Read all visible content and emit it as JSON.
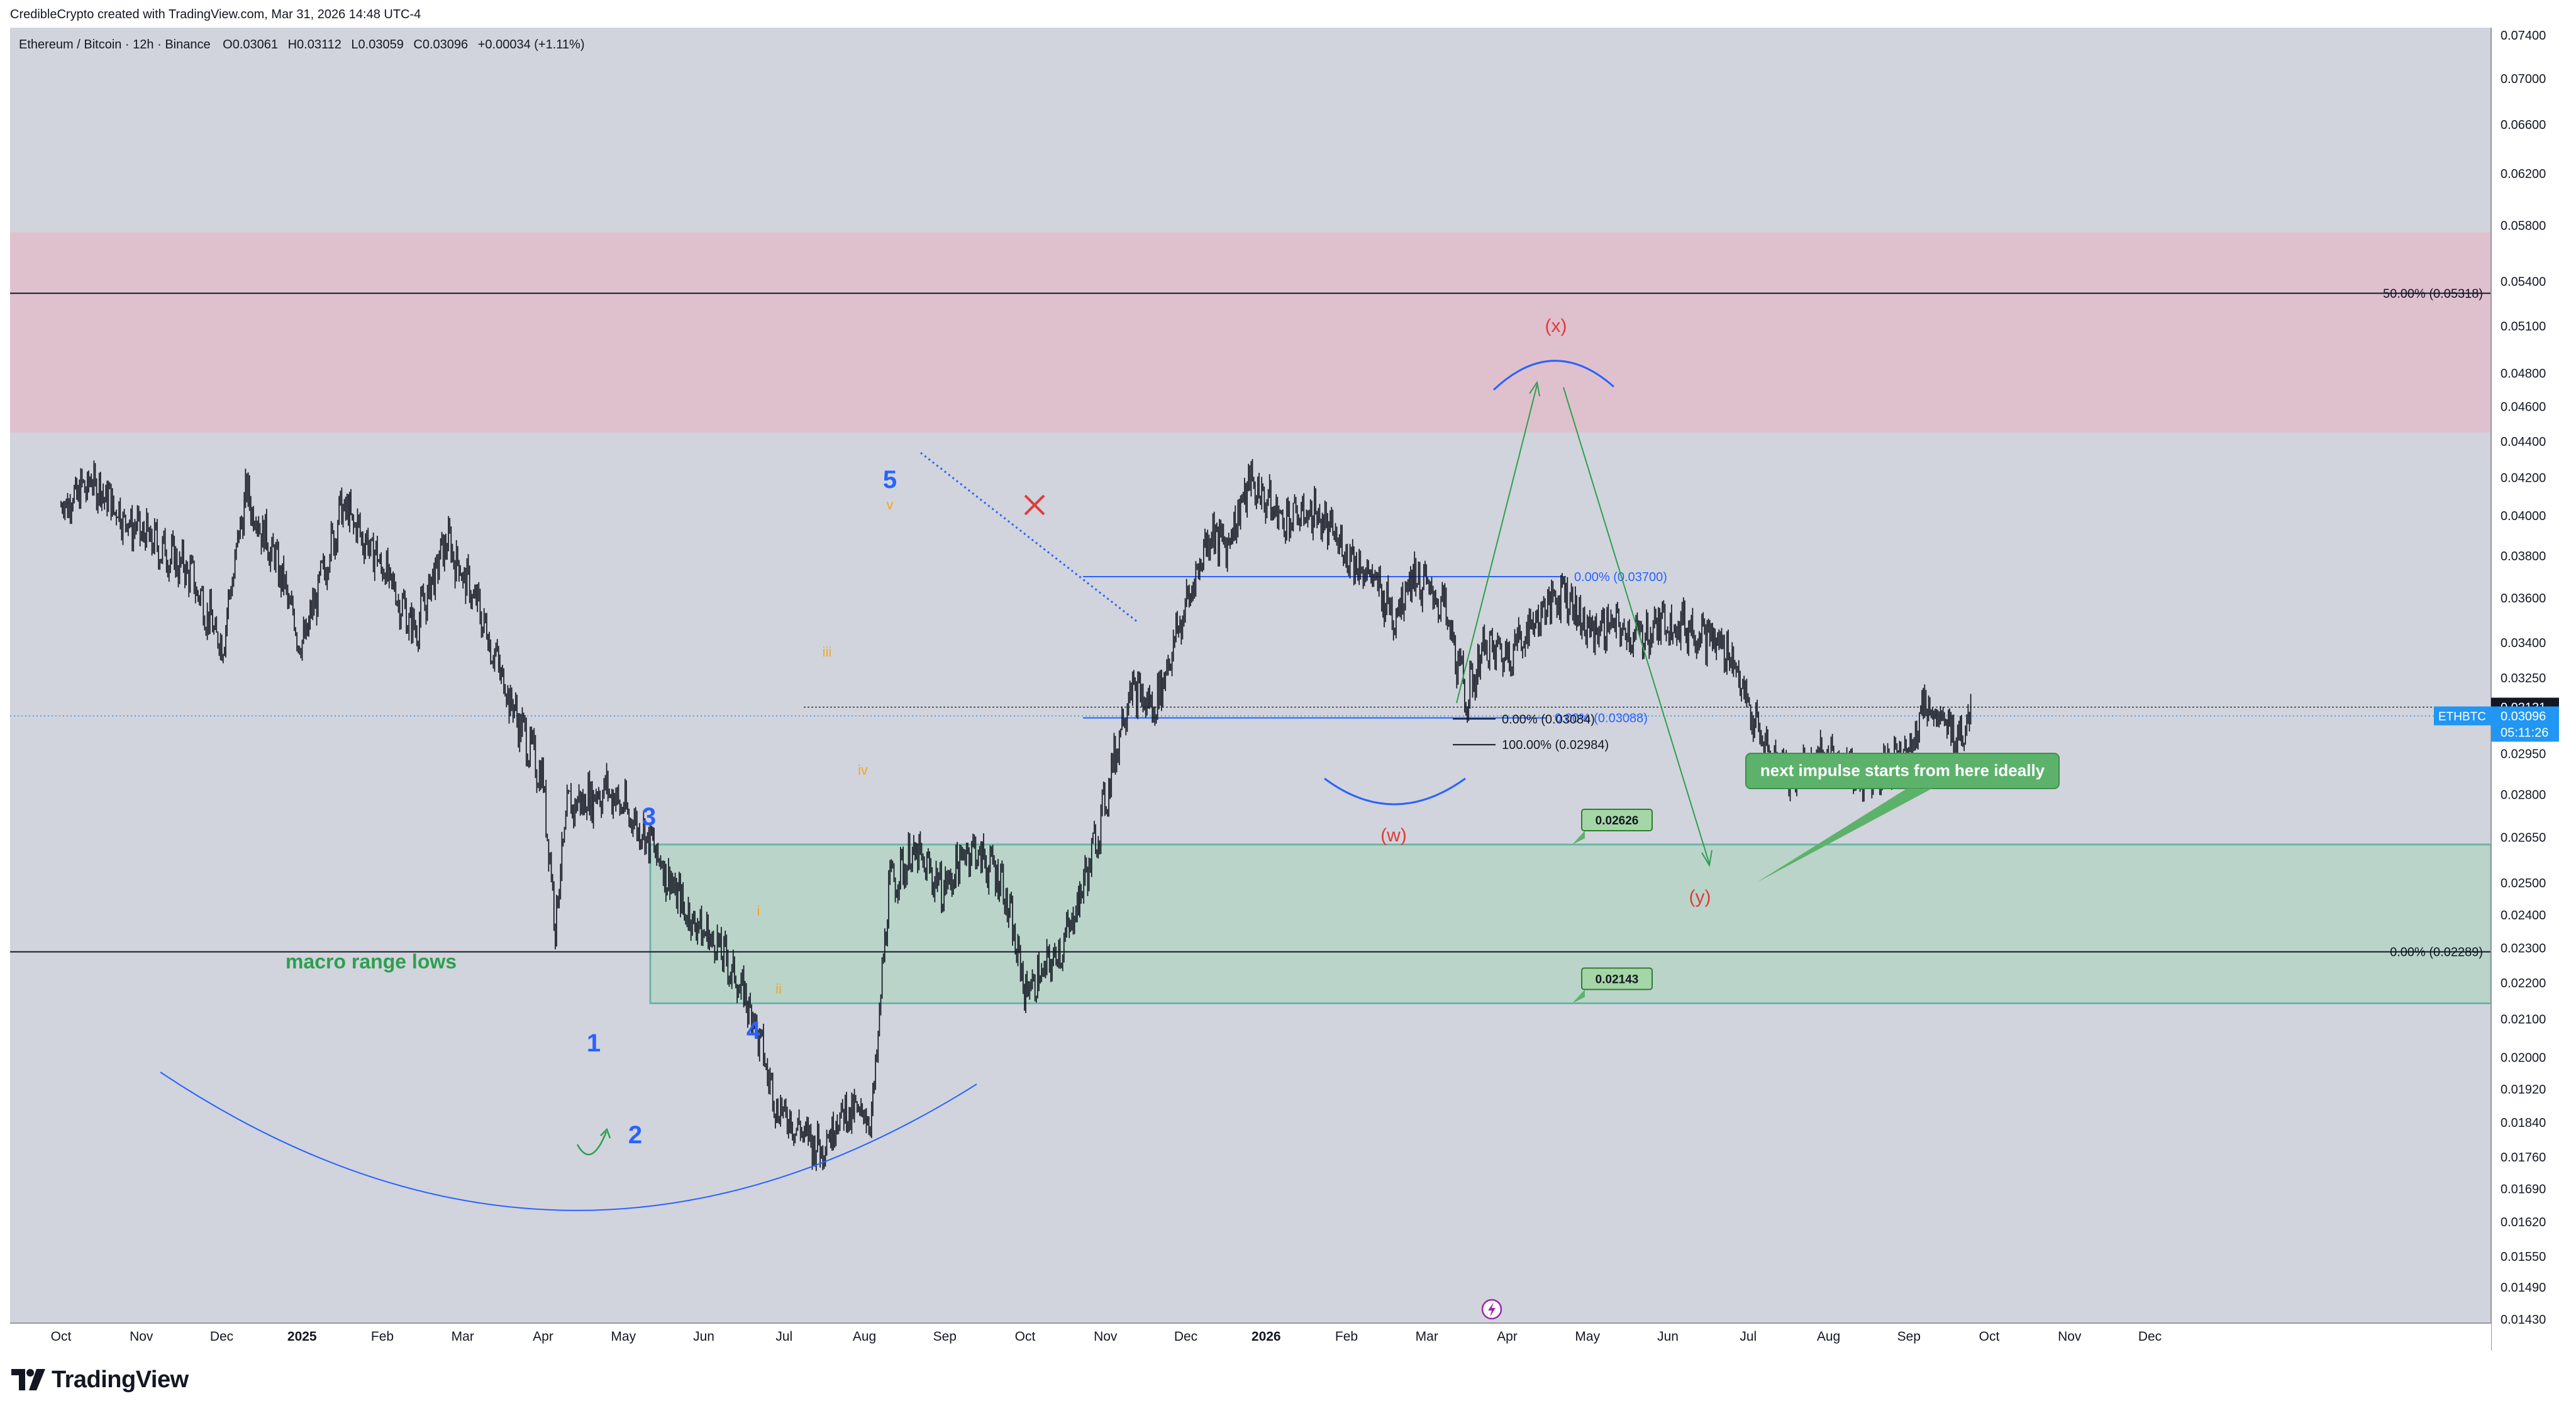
{
  "credit": "CredibleCrypto created with TradingView.com, Mar 31, 2026 14:48 UTC-4",
  "brand": "TradingView",
  "legend": {
    "title": "Ethereum / Bitcoin · 12h · Binance",
    "o_label": "O",
    "o_val": "0.03061",
    "h_label": "H",
    "h_val": "0.03112",
    "l_label": "L",
    "l_val": "0.03059",
    "c_label": "C",
    "c_val": "0.03096",
    "change": "+0.00034 (+1.11%)"
  },
  "colors": {
    "background": "#d1d4dc",
    "zone_red": "#e8b4c4",
    "zone_green": "#a8d5bc",
    "zone_green_border": "#1f9a78",
    "candle": "#131722",
    "blue_annot": "#2962ff",
    "orange_annot": "#f5a623",
    "red_annot": "#e03b3b",
    "green_annot": "#2e9e4f",
    "callout_green": "#5db26b",
    "price_tag_blue": "#2196f3"
  },
  "chart_data": {
    "type": "candlestick",
    "symbol": "ETHBTC",
    "interval": "12h",
    "price_axis": {
      "ticks": [
        "0.07400",
        "0.07000",
        "0.06600",
        "0.06200",
        "0.05800",
        "0.05400",
        "0.05100",
        "0.04800",
        "0.04600",
        "0.04400",
        "0.04200",
        "0.04000",
        "0.03800",
        "0.03600",
        "0.03400",
        "0.03250",
        "0.02950",
        "0.02800",
        "0.02650",
        "0.02500",
        "0.02400",
        "0.02300",
        "0.02200",
        "0.02100",
        "0.02000",
        "0.01920",
        "0.01840",
        "0.01760",
        "0.01690",
        "0.01620",
        "0.01550",
        "0.01490",
        "0.01430"
      ],
      "scale": "log"
    },
    "time_axis": {
      "ticks": [
        {
          "label": "Oct",
          "bold": false
        },
        {
          "label": "Nov",
          "bold": false
        },
        {
          "label": "Dec",
          "bold": false
        },
        {
          "label": "2025",
          "bold": true
        },
        {
          "label": "Feb",
          "bold": false
        },
        {
          "label": "Mar",
          "bold": false
        },
        {
          "label": "Apr",
          "bold": false
        },
        {
          "label": "May",
          "bold": false
        },
        {
          "label": "Jun",
          "bold": false
        },
        {
          "label": "Jul",
          "bold": false
        },
        {
          "label": "Aug",
          "bold": false
        },
        {
          "label": "Sep",
          "bold": false
        },
        {
          "label": "Oct",
          "bold": false
        },
        {
          "label": "Nov",
          "bold": false
        },
        {
          "label": "Dec",
          "bold": false
        },
        {
          "label": "2026",
          "bold": true
        },
        {
          "label": "Feb",
          "bold": false
        },
        {
          "label": "Mar",
          "bold": false
        },
        {
          "label": "Apr",
          "bold": false
        },
        {
          "label": "May",
          "bold": false
        },
        {
          "label": "Jun",
          "bold": false
        },
        {
          "label": "Jul",
          "bold": false
        },
        {
          "label": "Aug",
          "bold": false
        },
        {
          "label": "Sep",
          "bold": false
        },
        {
          "label": "Oct",
          "bold": false
        },
        {
          "label": "Nov",
          "bold": false
        },
        {
          "label": "Dec",
          "bold": false
        }
      ]
    },
    "price_path": [
      {
        "m": 0,
        "v": 0.0405
      },
      {
        "m": 0.4,
        "v": 0.0418
      },
      {
        "m": 0.8,
        "v": 0.0398
      },
      {
        "m": 1.2,
        "v": 0.0385
      },
      {
        "m": 1.6,
        "v": 0.0372
      },
      {
        "m": 2.0,
        "v": 0.0338
      },
      {
        "m": 2.3,
        "v": 0.0412
      },
      {
        "m": 2.7,
        "v": 0.0375
      },
      {
        "m": 3.0,
        "v": 0.0338
      },
      {
        "m": 3.5,
        "v": 0.0405
      },
      {
        "m": 4.0,
        "v": 0.0375
      },
      {
        "m": 4.4,
        "v": 0.0345
      },
      {
        "m": 4.8,
        "v": 0.0388
      },
      {
        "m": 5.2,
        "v": 0.0355
      },
      {
        "m": 5.6,
        "v": 0.0315
      },
      {
        "m": 6.0,
        "v": 0.0285
      },
      {
        "m": 6.15,
        "v": 0.0238
      },
      {
        "m": 6.3,
        "v": 0.0275
      },
      {
        "m": 6.8,
        "v": 0.0282
      },
      {
        "m": 7.3,
        "v": 0.0265
      },
      {
        "m": 7.8,
        "v": 0.024
      },
      {
        "m": 8.2,
        "v": 0.023
      },
      {
        "m": 8.6,
        "v": 0.0212
      },
      {
        "m": 8.9,
        "v": 0.0188
      },
      {
        "m": 9.2,
        "v": 0.0182
      },
      {
        "m": 9.45,
        "v": 0.0178
      },
      {
        "m": 9.7,
        "v": 0.0186
      },
      {
        "m": 10.1,
        "v": 0.0186
      },
      {
        "m": 10.3,
        "v": 0.0248
      },
      {
        "m": 10.6,
        "v": 0.026
      },
      {
        "m": 11.0,
        "v": 0.0248
      },
      {
        "m": 11.3,
        "v": 0.0262
      },
      {
        "m": 11.7,
        "v": 0.0252
      },
      {
        "m": 12.0,
        "v": 0.0218
      },
      {
        "m": 12.2,
        "v": 0.0222
      },
      {
        "m": 12.5,
        "v": 0.0232
      },
      {
        "m": 12.8,
        "v": 0.0256
      },
      {
        "m": 13.0,
        "v": 0.0278
      },
      {
        "m": 13.3,
        "v": 0.0322
      },
      {
        "m": 13.6,
        "v": 0.0312
      },
      {
        "m": 13.9,
        "v": 0.0345
      },
      {
        "m": 14.3,
        "v": 0.0392
      },
      {
        "m": 14.5,
        "v": 0.0385
      },
      {
        "m": 14.8,
        "v": 0.0418
      },
      {
        "m": 15.2,
        "v": 0.0398
      },
      {
        "m": 15.6,
        "v": 0.0402
      },
      {
        "m": 16.0,
        "v": 0.0382
      },
      {
        "m": 16.3,
        "v": 0.037
      },
      {
        "m": 16.6,
        "v": 0.0352
      },
      {
        "m": 16.8,
        "v": 0.0372
      },
      {
        "m": 17.2,
        "v": 0.0357
      },
      {
        "m": 17.5,
        "v": 0.0316
      },
      {
        "m": 17.7,
        "v": 0.0338
      },
      {
        "m": 18.0,
        "v": 0.0335
      },
      {
        "m": 18.4,
        "v": 0.0352
      },
      {
        "m": 18.7,
        "v": 0.0365
      },
      {
        "m": 19.0,
        "v": 0.0345
      },
      {
        "m": 19.3,
        "v": 0.0348
      },
      {
        "m": 19.6,
        "v": 0.0342
      },
      {
        "m": 20.0,
        "v": 0.035
      },
      {
        "m": 20.4,
        "v": 0.0345
      },
      {
        "m": 20.8,
        "v": 0.0335
      },
      {
        "m": 21.0,
        "v": 0.0312
      },
      {
        "m": 21.3,
        "v": 0.0292
      },
      {
        "m": 21.6,
        "v": 0.0288
      },
      {
        "m": 22.0,
        "v": 0.0294
      },
      {
        "m": 22.4,
        "v": 0.0287
      },
      {
        "m": 22.8,
        "v": 0.0292
      },
      {
        "m": 23.0,
        "v": 0.0296
      },
      {
        "m": 23.2,
        "v": 0.0316
      },
      {
        "m": 23.4,
        "v": 0.0306
      },
      {
        "m": 23.6,
        "v": 0.0302
      },
      {
        "m": 23.77,
        "v": 0.03096
      }
    ],
    "current_price": "0.03096",
    "countdown": "05:11:26",
    "high_tag": "0.03131",
    "zones": [
      {
        "kind": "red",
        "from": 0.0445,
        "to": 0.0575
      },
      {
        "kind": "green",
        "from": 0.02143,
        "to": 0.02626
      }
    ],
    "levels": {
      "fib50": {
        "label": "50.00% (0.05318)",
        "value": 0.05318
      },
      "fib0_low": {
        "label": "0.00% (0.02289)",
        "value": 0.02289
      },
      "range_top": {
        "label": "0.00% (0.03700)",
        "value": 0.037
      },
      "range_bottom": {
        "value": 0.03088
      },
      "label_30884": "0.00% (0.03084)",
      "label_30888": "0.00% (0.03088)",
      "label_100": "100.00% (0.02984)",
      "level_30984": 0.02984,
      "level_30884": 0.03084
    },
    "box_labels": {
      "top": "0.02626",
      "bottom": "0.02143"
    },
    "annotations": {
      "wave1": "1",
      "wave2": "2",
      "wave3": "3",
      "wave4": "4",
      "wave5": "5",
      "sub_i": "i",
      "sub_ii": "ii",
      "sub_iii": "iii",
      "sub_iv": "iv",
      "sub_v": "v",
      "w": "(w)",
      "x": "(x)",
      "y": "(y)",
      "macro": "macro range lows",
      "callout": "next impulse starts from here ideally"
    }
  }
}
